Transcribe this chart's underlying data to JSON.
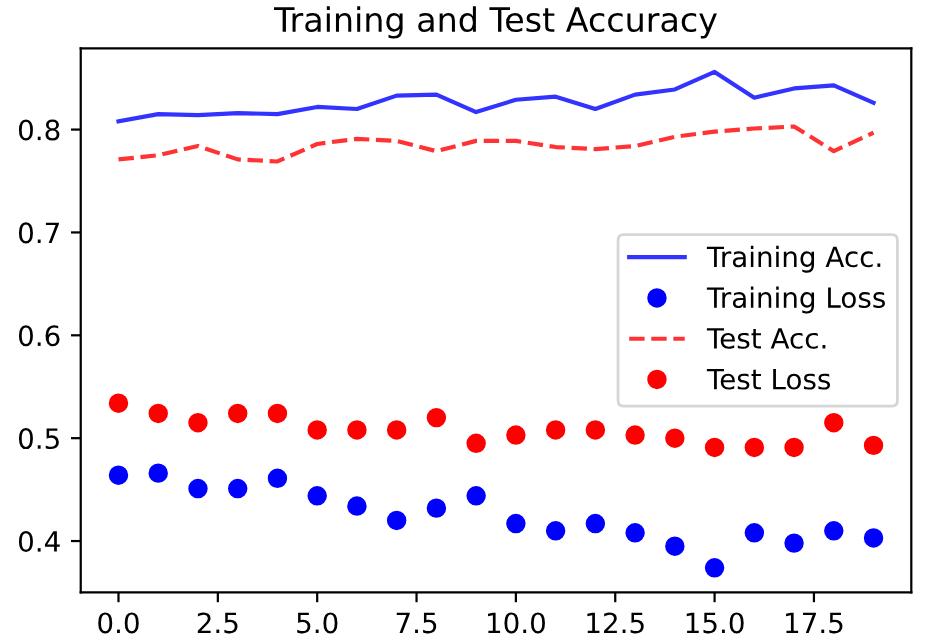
{
  "chart_data": {
    "type": "line",
    "title": "Training and Test Accuracy",
    "x": [
      0,
      1,
      2,
      3,
      4,
      5,
      6,
      7,
      8,
      9,
      10,
      11,
      12,
      13,
      14,
      15,
      16,
      17,
      18,
      19
    ],
    "series": [
      {
        "name": "Training Acc.",
        "color": "#0000ff",
        "line_style": "solid",
        "marker": "none",
        "values": [
          0.808,
          0.815,
          0.814,
          0.816,
          0.815,
          0.822,
          0.82,
          0.833,
          0.834,
          0.817,
          0.829,
          0.832,
          0.82,
          0.834,
          0.839,
          0.856,
          0.831,
          0.84,
          0.843,
          0.826
        ]
      },
      {
        "name": "Training Loss",
        "type": "scatter",
        "color": "#0000ff",
        "marker": "circle",
        "values": [
          0.464,
          0.466,
          0.451,
          0.451,
          0.461,
          0.444,
          0.434,
          0.42,
          0.432,
          0.444,
          0.417,
          0.41,
          0.417,
          0.408,
          0.395,
          0.374,
          0.408,
          0.398,
          0.41,
          0.403
        ]
      },
      {
        "name": "Test Acc.",
        "color": "#ff0000",
        "line_style": "dashed",
        "marker": "none",
        "values": [
          0.771,
          0.775,
          0.784,
          0.771,
          0.769,
          0.786,
          0.791,
          0.789,
          0.779,
          0.789,
          0.789,
          0.783,
          0.781,
          0.784,
          0.793,
          0.798,
          0.801,
          0.803,
          0.779,
          0.797
        ]
      },
      {
        "name": "Test Loss",
        "type": "scatter",
        "color": "#ff0000",
        "marker": "circle",
        "values": [
          0.534,
          0.524,
          0.515,
          0.524,
          0.524,
          0.508,
          0.508,
          0.508,
          0.52,
          0.495,
          0.503,
          0.508,
          0.508,
          0.503,
          0.5,
          0.491,
          0.491,
          0.491,
          0.515,
          0.493
        ]
      }
    ],
    "xlim": [
      -0.95,
      19.95
    ],
    "xticks": [
      {
        "value": 0,
        "label": "0.0"
      },
      {
        "value": 2.5,
        "label": "2.5"
      },
      {
        "value": 5,
        "label": "5.0"
      },
      {
        "value": 7.5,
        "label": "7.5"
      },
      {
        "value": 10,
        "label": "10.0"
      },
      {
        "value": 12.5,
        "label": "12.5"
      },
      {
        "value": 15,
        "label": "15.0"
      },
      {
        "value": 17.5,
        "label": "17.5"
      }
    ],
    "ylim": [
      0.35,
      0.879
    ],
    "yticks": [
      0.4,
      0.5,
      0.6,
      0.7,
      0.8
    ],
    "grid": false,
    "legend": "center right"
  }
}
